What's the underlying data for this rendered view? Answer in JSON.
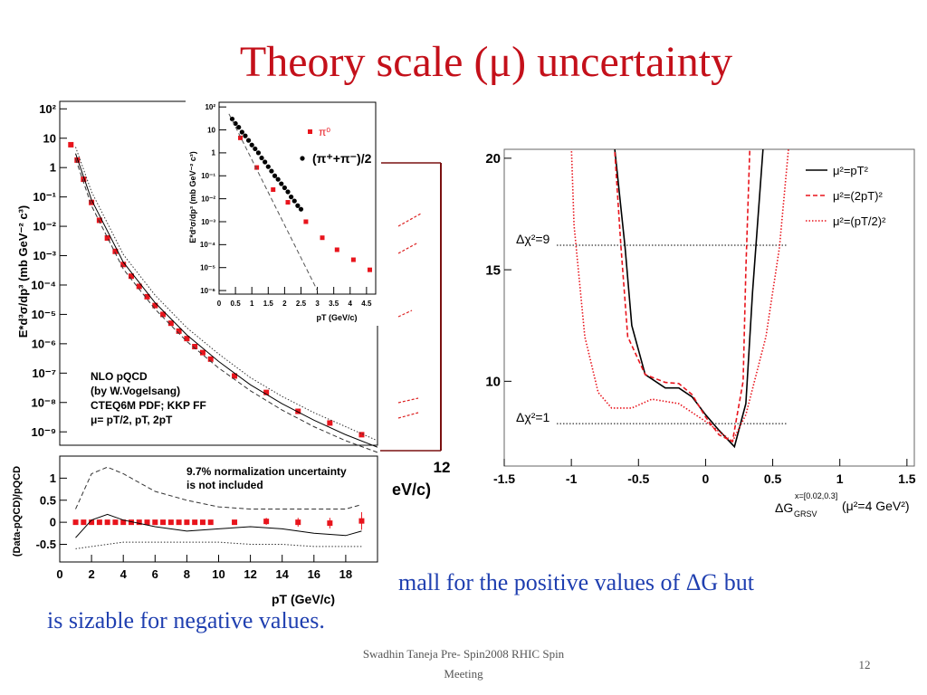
{
  "title": "Theory scale (μ) uncertainty",
  "body_text": [
    "mall for the positive values of ΔG but",
    "is sizable for negative values."
  ],
  "footer": [
    "Swadhin Taneja  Pre- Spin2008  RHIC Spin",
    "Meeting"
  ],
  "page_number": 12,
  "hidden_fragments": [
    "12",
    "eV/c)"
  ],
  "chart_data": [
    {
      "type": "scatter",
      "y_label": "E*d³σ/dp³ (mb GeV⁻² c³)",
      "log_y": true,
      "xlim": [
        0,
        20
      ],
      "ylim": [
        3.5e-10,
        180
      ],
      "yticks": [
        {
          "value": 100,
          "label": "10²"
        },
        10,
        1,
        {
          "value": 0.1,
          "label": "10⁻¹"
        },
        {
          "value": 0.01,
          "label": "10⁻²"
        },
        {
          "value": 0.001,
          "label": "10⁻³"
        },
        {
          "value": 0.0001,
          "label": "10⁻⁴"
        },
        {
          "value": 1e-05,
          "label": "10⁻⁵"
        },
        {
          "value": 1e-06,
          "label": "10⁻⁶"
        },
        {
          "value": 1e-07,
          "label": "10⁻⁷"
        },
        {
          "value": 1e-08,
          "label": "10⁻⁸"
        },
        {
          "value": 1e-09,
          "label": "10⁻⁹"
        }
      ],
      "annotation": [
        "NLO pQCD",
        "(by W.Vogelsang)",
        "CTEQ6M PDF; KKP FF",
        "μ= pT/2, pT, 2pT"
      ],
      "series": [
        {
          "style": "square",
          "color": "#e8141c",
          "x": [
            0.7,
            1.1,
            1.5,
            2.0,
            2.5,
            3.0,
            3.5,
            4.0,
            4.5,
            5.0,
            5.5,
            6.0,
            6.5,
            7.0,
            7.5,
            8.0,
            8.5,
            9.0,
            9.5,
            11,
            13,
            15,
            17,
            19
          ],
          "values": [
            6,
            1.8,
            0.4,
            0.065,
            0.016,
            0.004,
            0.0014,
            0.0005,
            0.0002,
            9e-05,
            4e-05,
            2e-05,
            1e-05,
            5e-06,
            2.7e-06,
            1.5e-06,
            8e-07,
            5e-07,
            3e-07,
            8e-08,
            2.2e-08,
            5e-09,
            2e-09,
            8e-10
          ]
        },
        {
          "style": "solid",
          "color": "#000000",
          "x": [
            1,
            2,
            4,
            6,
            8,
            10,
            12,
            14,
            16,
            18,
            20
          ],
          "values": [
            3,
            0.08,
            0.0006,
            2.5e-05,
            2e-06,
            2.5e-07,
            4e-08,
            9e-09,
            2.5e-09,
            8e-10,
            3e-10
          ]
        },
        {
          "style": "dashed",
          "color": "#333333",
          "x": [
            1,
            2,
            4,
            6,
            8,
            10,
            12,
            14,
            16,
            18,
            20
          ],
          "values": [
            2,
            0.05,
            0.00035,
            1.5e-05,
            1.2e-06,
            1.5e-07,
            2.5e-08,
            5.5e-09,
            1.5e-09,
            5e-10,
            2e-10
          ]
        },
        {
          "style": "dotted",
          "color": "#333333",
          "x": [
            1,
            2,
            4,
            6,
            8,
            10,
            12,
            14,
            16,
            18,
            20
          ],
          "values": [
            5,
            0.15,
            0.0011,
            4.5e-05,
            3.5e-06,
            4.5e-07,
            7e-08,
            1.6e-08,
            4.5e-09,
            1.5e-09,
            5e-10
          ]
        }
      ]
    },
    {
      "type": "scatter",
      "y_label": "(Data-pQCD)/pQCD",
      "x_label": "pT (GeV/c)",
      "xlim": [
        0,
        20
      ],
      "ylim": [
        -0.9,
        1.5
      ],
      "xticks": [
        0,
        2,
        4,
        6,
        8,
        10,
        12,
        14,
        16,
        18
      ],
      "yticks": [
        1,
        0.5,
        0,
        -0.5
      ],
      "annotation": [
        "9.7% normalization uncertainty",
        "is not included"
      ],
      "series": [
        {
          "style": "square",
          "color": "#e8141c",
          "x": [
            1,
            1.5,
            2,
            2.5,
            3,
            3.5,
            4,
            4.5,
            5,
            5.5,
            6,
            6.5,
            7,
            7.5,
            8,
            8.5,
            9,
            9.5,
            11,
            13,
            15,
            17,
            19
          ],
          "values": [
            0,
            0,
            0,
            0,
            0,
            0,
            0,
            0,
            0,
            0,
            0,
            0,
            0,
            0,
            0,
            0,
            0,
            0,
            0,
            0.02,
            0,
            -0.02,
            0.03
          ],
          "errors": [
            0.02,
            0.02,
            0.02,
            0.02,
            0.02,
            0.02,
            0.02,
            0.02,
            0.02,
            0.02,
            0.02,
            0.02,
            0.02,
            0.02,
            0.02,
            0.02,
            0.03,
            0.03,
            0.04,
            0.08,
            0.1,
            0.12,
            0.2
          ]
        },
        {
          "style": "dashed",
          "color": "#333333",
          "x": [
            1,
            2,
            3,
            4,
            6,
            8,
            10,
            12,
            14,
            16,
            18,
            19
          ],
          "values": [
            0.3,
            1.1,
            1.25,
            1.1,
            0.7,
            0.5,
            0.35,
            0.3,
            0.3,
            0.3,
            0.3,
            0.4
          ]
        },
        {
          "style": "solid",
          "color": "#000000",
          "x": [
            1,
            2,
            3,
            4,
            6,
            8,
            10,
            12,
            14,
            16,
            18,
            19
          ],
          "values": [
            -0.35,
            0.05,
            0.18,
            0.05,
            -0.1,
            -0.2,
            -0.15,
            -0.1,
            -0.15,
            -0.25,
            -0.3,
            -0.2
          ]
        },
        {
          "style": "dotted",
          "color": "#333333",
          "x": [
            1,
            2,
            3,
            4,
            6,
            8,
            10,
            12,
            14,
            16,
            18,
            19
          ],
          "values": [
            -0.6,
            -0.55,
            -0.5,
            -0.45,
            -0.45,
            -0.45,
            -0.45,
            -0.5,
            -0.5,
            -0.55,
            -0.55,
            -0.55
          ]
        }
      ]
    },
    {
      "type": "line",
      "x_label": [
        "ΔG",
        "x=[0.02,0.3]",
        "GRSV",
        "(μ²=4 GeV²)"
      ],
      "xlim": [
        -1.5,
        1.555
      ],
      "ylim": [
        6.2,
        20.4
      ],
      "xticks": [
        -1.5,
        -1,
        -0.5,
        0,
        0.5,
        1,
        1.5
      ],
      "yticks": [
        20,
        15,
        10
      ],
      "legend": "upper right",
      "annotations": [
        {
          "label": "Δχ²=9",
          "value": 16.1
        },
        {
          "label": "Δχ²=1",
          "value": 8.1
        }
      ],
      "series": [
        {
          "name": "μ²=pT²",
          "style": "solid",
          "color": "#000000",
          "x": [
            -0.68,
            -0.6,
            -0.55,
            -0.45,
            -0.3,
            -0.2,
            -0.1,
            0,
            0.1,
            0.215,
            0.3,
            0.35,
            0.43
          ],
          "values": [
            20.6,
            16,
            12.5,
            10.3,
            9.7,
            9.7,
            9.3,
            8.5,
            7.8,
            7.07,
            9,
            14,
            20.6
          ]
        },
        {
          "name": "μ²=(2pT)²",
          "style": "dashed",
          "color": "#e8141c",
          "x": [
            -0.68,
            -0.63,
            -0.58,
            -0.45,
            -0.3,
            -0.2,
            -0.1,
            0,
            0.1,
            0.2,
            0.28,
            0.3,
            0.33
          ],
          "values": [
            20.6,
            16,
            12,
            10.3,
            9.95,
            9.9,
            9.4,
            8.4,
            7.6,
            7.3,
            10,
            15,
            20.6
          ]
        },
        {
          "name": "μ²=(pT/2)²",
          "style": "dotted",
          "color": "#e8141c",
          "x": [
            -1.0,
            -0.98,
            -0.9,
            -0.8,
            -0.7,
            -0.55,
            -0.4,
            -0.2,
            0,
            0.2,
            0.3,
            0.45,
            0.55,
            0.62
          ],
          "values": [
            20.6,
            17,
            12,
            9.5,
            8.8,
            8.8,
            9.2,
            9.0,
            8.2,
            7.3,
            8.5,
            12,
            16,
            20.6
          ]
        }
      ]
    },
    {
      "type": "scatter",
      "y_label": "E*d³σ/dp³ (mb GeV⁻² c³)",
      "x_label": "pT (GeV/c)",
      "log_y": true,
      "xlim": [
        0,
        4.78
      ],
      "ylim": [
        7e-07,
        160
      ],
      "xticks": [
        0,
        0.5,
        1,
        1.5,
        2,
        2.5,
        3,
        3.5,
        4,
        4.5
      ],
      "yticks": [
        {
          "value": 100,
          "label": "10²"
        },
        10,
        1,
        {
          "value": 0.1,
          "label": "10⁻¹"
        },
        {
          "value": 0.01,
          "label": "10⁻²"
        },
        {
          "value": 0.001,
          "label": "10⁻³"
        },
        {
          "value": 0.0001,
          "label": "10⁻⁴"
        },
        {
          "value": 1e-05,
          "label": "10⁻⁵"
        },
        {
          "value": 1e-06,
          "label": "10⁻⁶"
        }
      ],
      "series": [
        {
          "name": "π⁰",
          "style": "square",
          "color": "#e8141c",
          "x": [
            0.65,
            1.15,
            1.65,
            2.1,
            2.65,
            3.15,
            3.6,
            4.1,
            4.6
          ],
          "values": [
            4.5,
            0.23,
            0.025,
            0.007,
            0.001,
            0.0002,
            6e-05,
            2.2e-05,
            8e-06
          ]
        },
        {
          "name": "(π⁺+π⁻)/2",
          "style": "circle",
          "color": "#000000",
          "x": [
            0.4,
            0.5,
            0.6,
            0.7,
            0.8,
            0.9,
            1.0,
            1.1,
            1.2,
            1.3,
            1.4,
            1.5,
            1.6,
            1.7,
            1.8,
            1.9,
            2.0,
            2.1,
            2.2,
            2.3,
            2.4,
            2.5
          ],
          "values": [
            30,
            19,
            13,
            8,
            5.5,
            3.5,
            2.2,
            1.5,
            1,
            0.6,
            0.4,
            0.25,
            0.16,
            0.1,
            0.07,
            0.045,
            0.03,
            0.02,
            0.012,
            0.008,
            0.005,
            0.0035
          ]
        },
        {
          "style": "dashed",
          "color": "#555555",
          "x": [
            0.3,
            3.0
          ],
          "values": [
            50,
            1e-06
          ]
        }
      ]
    }
  ]
}
